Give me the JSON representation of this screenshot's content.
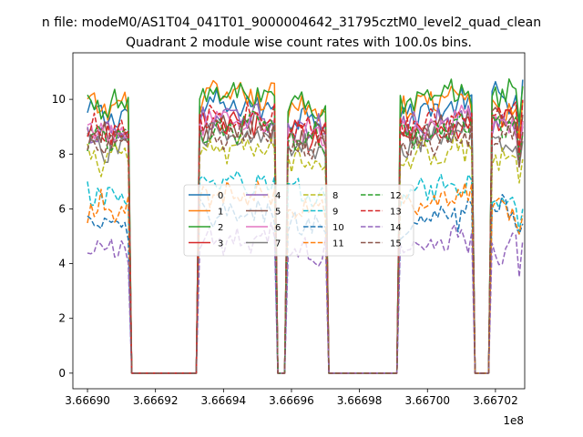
{
  "suptitle": "n file: modeM0/AS1T04_041T01_9000004642_31795cztM0_level2_quad_clean",
  "chart_data": {
    "type": "line",
    "title": "Quadrant 2 module wise count rates with 100.0s bins.",
    "xlabel": "",
    "ylabel": "",
    "x_offset_label": "1e8",
    "xlim": [
      366689570,
      366702860
    ],
    "ylim": [
      -0.57,
      11.7
    ],
    "xticks": [
      366690000,
      366692000,
      366694000,
      366696000,
      366698000,
      366700000,
      366702000
    ],
    "xtick_labels": [
      "3.66690",
      "3.66692",
      "3.66694",
      "3.66696",
      "3.66698",
      "3.66700",
      "3.66702"
    ],
    "yticks": [
      0,
      2,
      4,
      6,
      8,
      10
    ],
    "ytick_labels": [
      "0",
      "2",
      "4",
      "6",
      "8",
      "10"
    ],
    "legend_position": "center",
    "x": {
      "start": 366690000,
      "step": 100,
      "count": 129
    },
    "gaps": [
      [
        366691300,
        366693200
      ],
      [
        366695600,
        366695800
      ],
      [
        366697100,
        366699100
      ],
      [
        366701400,
        366701800
      ]
    ],
    "series": [
      {
        "name": "0",
        "color": "#1f77b4",
        "dash": "solid",
        "level": 9.4,
        "tail": 10.1
      },
      {
        "name": "1",
        "color": "#ff7f0e",
        "dash": "solid",
        "level": 9.7,
        "tail": 9.5
      },
      {
        "name": "2",
        "color": "#2ca02c",
        "dash": "solid",
        "level": 9.8,
        "tail": 10.3
      },
      {
        "name": "3",
        "color": "#d62728",
        "dash": "solid",
        "level": 8.7,
        "tail": 9.2
      },
      {
        "name": "4",
        "color": "#9467bd",
        "dash": "solid",
        "level": 8.9,
        "tail": 9.0
      },
      {
        "name": "5",
        "color": "#8c564b",
        "dash": "solid",
        "level": 8.6,
        "tail": 9.3
      },
      {
        "name": "6",
        "color": "#e377c2",
        "dash": "solid",
        "level": 8.8,
        "tail": 9.0
      },
      {
        "name": "7",
        "color": "#7f7f7f",
        "dash": "solid",
        "level": 8.3,
        "tail": 8.4
      },
      {
        "name": "8",
        "color": "#bcbd22",
        "dash": "dashed",
        "level": 7.8,
        "tail": 8.0
      },
      {
        "name": "9",
        "color": "#17becf",
        "dash": "dashed",
        "level": 6.5,
        "tail": 6.4
      },
      {
        "name": "10",
        "color": "#1f77b4",
        "dash": "dashed",
        "level": 5.4,
        "tail": 5.9
      },
      {
        "name": "11",
        "color": "#ff7f0e",
        "dash": "dashed",
        "level": 6.1,
        "tail": 6.1
      },
      {
        "name": "12",
        "color": "#2ca02c",
        "dash": "dashed",
        "level": 8.6,
        "tail": 9.0
      },
      {
        "name": "13",
        "color": "#d62728",
        "dash": "dashed",
        "level": 8.9,
        "tail": 9.4
      },
      {
        "name": "14",
        "color": "#9467bd",
        "dash": "dashed",
        "level": 4.5,
        "tail": 4.5
      },
      {
        "name": "15",
        "color": "#8c564b",
        "dash": "dashed",
        "level": 8.3,
        "tail": 8.7
      }
    ]
  }
}
